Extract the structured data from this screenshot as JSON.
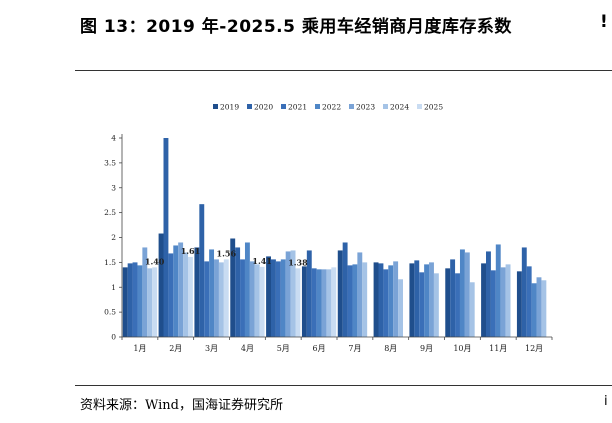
{
  "header": {
    "title": "图 13：2019 年-2025.5 乘用车经销商月度库存系数",
    "title_cut": "!"
  },
  "footer": {
    "source": "资料来源：Wind，国海证券研究所",
    "source_cut": "i"
  },
  "chart_data": {
    "type": "bar",
    "categories": [
      "1月",
      "2月",
      "3月",
      "4月",
      "5月",
      "6月",
      "7月",
      "8月",
      "9月",
      "10月",
      "11月",
      "12月"
    ],
    "series": [
      {
        "name": "2019",
        "color": "#1f4e8c",
        "values": [
          1.4,
          2.08,
          1.8,
          1.98,
          1.62,
          1.42,
          1.74,
          1.5,
          1.48,
          1.38,
          1.48,
          1.32
        ]
      },
      {
        "name": "2020",
        "color": "#2e62a8",
        "values": [
          1.48,
          4.0,
          2.67,
          1.8,
          1.56,
          1.74,
          1.9,
          1.48,
          1.54,
          1.56,
          1.72,
          1.8
        ]
      },
      {
        "name": "2021",
        "color": "#3a6fb8",
        "values": [
          1.5,
          1.68,
          1.52,
          1.56,
          1.52,
          1.38,
          1.44,
          1.36,
          1.3,
          1.28,
          1.34,
          1.42
        ]
      },
      {
        "name": "2022",
        "color": "#4f86c6",
        "values": [
          1.44,
          1.84,
          1.76,
          1.9,
          1.56,
          1.36,
          1.46,
          1.44,
          1.46,
          1.76,
          1.86,
          1.08
        ]
      },
      {
        "name": "2023",
        "color": "#7aa3d6",
        "values": [
          1.8,
          1.9,
          1.56,
          1.52,
          1.72,
          1.36,
          1.7,
          1.52,
          1.5,
          1.7,
          1.4,
          1.2
        ]
      },
      {
        "name": "2024",
        "color": "#a5c3e6",
        "values": [
          1.38,
          1.7,
          1.5,
          1.46,
          1.74,
          1.36,
          1.5,
          1.16,
          1.28,
          1.1,
          1.46,
          1.14
        ]
      },
      {
        "name": "2025",
        "color": "#c9dcf2",
        "values": [
          1.4,
          1.61,
          1.56,
          1.41,
          1.38,
          1.4,
          null,
          null,
          null,
          null,
          null,
          null
        ]
      }
    ],
    "data_labels": [
      {
        "category": "1月",
        "text": "1.40"
      },
      {
        "category": "2月",
        "text": "1.61"
      },
      {
        "category": "3月",
        "text": "1.56"
      },
      {
        "category": "4月",
        "text": "1.41"
      },
      {
        "category": "5月",
        "text": "1.38"
      }
    ],
    "y_ticks": [
      "0",
      "0.5",
      "1",
      "1.5",
      "2",
      "2.5",
      "3",
      "3.5",
      "4"
    ],
    "ylim": [
      0,
      4
    ],
    "grid": false,
    "legend_position": "top",
    "title": "",
    "xlabel": "",
    "ylabel": ""
  }
}
